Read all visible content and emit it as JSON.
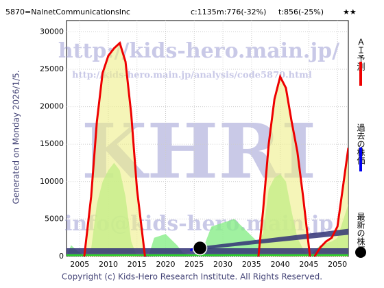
{
  "chart_data": {
    "type": "line",
    "header": {
      "code": "5870=NalnetCommunicationsInc",
      "current": "c:1135",
      "m": "m:776(-32%)",
      "t": "t:856(-25%)",
      "rating": "★★"
    },
    "generated": "Generated on Monday 2026/1/5.",
    "copyright": "Copyright (c) Kids-Hero Research Institute. All Rights Reserved.",
    "watermarks": [
      "http://kids-hero.main.jp/",
      "http://kids-hero.main.jp/analysis/code5870.html",
      "KHRI",
      "info@kids-hero.main.jp"
    ],
    "xlim": [
      2002.7,
      2051.9
    ],
    "ylim": [
      0,
      31500
    ],
    "xticks": [
      2005,
      2010,
      2015,
      2020,
      2025,
      2030,
      2035,
      2040,
      2045,
      2050
    ],
    "yticks": [
      0,
      5000,
      10000,
      15000,
      20000,
      25000,
      30000
    ],
    "grid": true,
    "green_area": {
      "color": "#88ee88",
      "x": [
        2002.7,
        2003.5,
        2004.5,
        2006,
        2007,
        2008,
        2009,
        2010,
        2011,
        2012,
        2013,
        2014,
        2015,
        2017,
        2018,
        2020,
        2022,
        2023,
        2025,
        2026.5,
        2028,
        2030,
        2032,
        2034,
        2036,
        2037,
        2038,
        2039,
        2040,
        2041,
        2042,
        2043,
        2044,
        2045,
        2047,
        2049,
        2050,
        2051.9
      ],
      "values": [
        0,
        1500,
        800,
        0,
        1000,
        7000,
        10000,
        11500,
        12500,
        11500,
        8000,
        2000,
        0,
        0,
        2500,
        3000,
        1500,
        500,
        0,
        1000,
        4000,
        4500,
        5000,
        3500,
        2000,
        3000,
        9000,
        10500,
        11000,
        10000,
        6000,
        2500,
        1000,
        0,
        1500,
        2000,
        2500,
        7000
      ]
    },
    "bands": [
      {
        "color": "#333377",
        "x": [
          2002.7,
          2051.9
        ],
        "low": [
          300,
          300
        ],
        "high": [
          1100,
          1100
        ]
      },
      {
        "color": "#333377",
        "x": [
          2026,
          2051.9
        ],
        "low": [
          900,
          2900
        ],
        "high": [
          1300,
          3700
        ]
      }
    ],
    "series": [
      {
        "name": "ＡＩ予測",
        "color": "#ee0000",
        "fill": "#eeee88",
        "x": [
          2005.8,
          2007,
          2008,
          2009,
          2010,
          2011,
          2012,
          2013,
          2014,
          2015,
          2016.4,
          2020,
          2036.2,
          2037,
          2038,
          2039,
          2040,
          2041,
          2042,
          2043,
          2044,
          2045.2,
          2045.6,
          2046,
          2047,
          2048,
          2049,
          2050,
          2051,
          2051.9
        ],
        "values": [
          0,
          8000,
          18000,
          24500,
          26800,
          27800,
          28500,
          26000,
          19000,
          9000,
          0,
          null,
          0,
          6000,
          15000,
          21000,
          24000,
          22500,
          18000,
          14000,
          8000,
          0,
          null,
          0,
          1200,
          2000,
          2500,
          4000,
          9500,
          14500
        ]
      },
      {
        "name": "過去の株価",
        "color": "#0000ee",
        "x": [
          2024.3,
          2025,
          2026
        ],
        "values": [
          800,
          1100,
          1135
        ]
      },
      {
        "name": "最新の株価",
        "color": "#000000",
        "x": [
          2026
        ],
        "values": [
          1135
        ]
      }
    ]
  }
}
